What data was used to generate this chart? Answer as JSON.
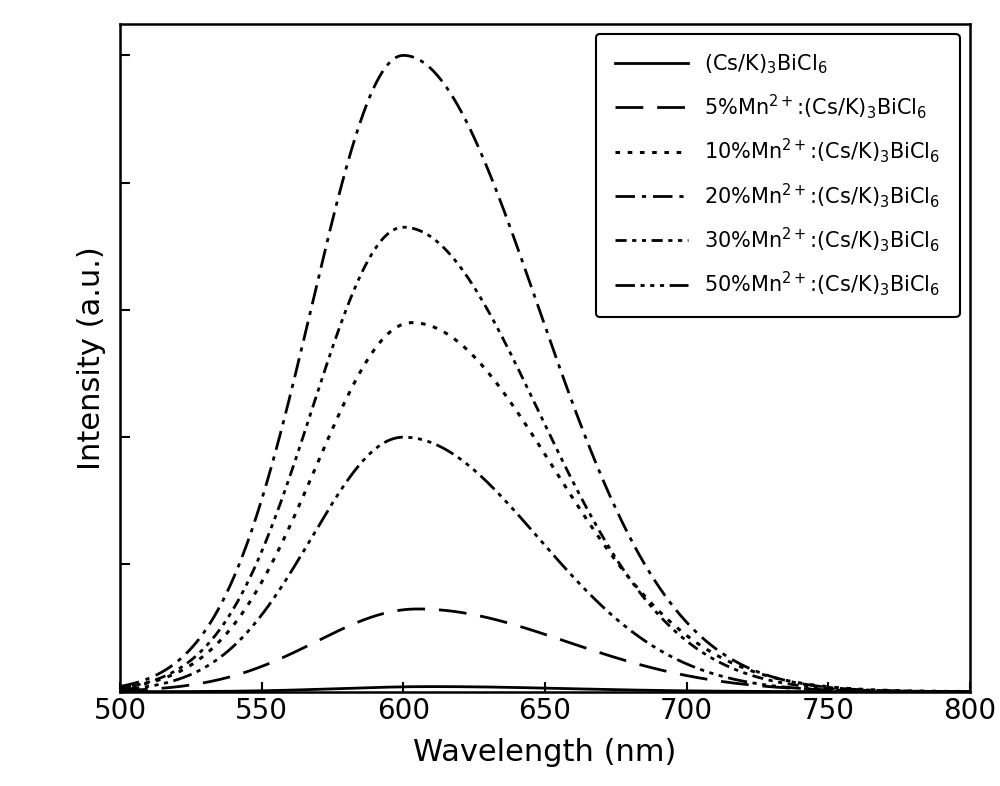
{
  "xlabel": "Wavelength (nm)",
  "ylabel": "Intensity (a.u.)",
  "xlim": [
    500,
    800
  ],
  "ylim": [
    0,
    1.05
  ],
  "xticks": [
    500,
    550,
    600,
    650,
    700,
    750,
    800
  ],
  "background_color": "#ffffff",
  "series": [
    {
      "label": "(Cs/K)$_3$BiCl$_6$",
      "peak": 610,
      "amplitude": 0.008,
      "sigma": 38,
      "skew": 2
    },
    {
      "label": "5%Mn$^{2+}$:(Cs/K)$_3$BiCl$_6$",
      "peak": 605,
      "amplitude": 0.13,
      "sigma": 42,
      "skew": 3
    },
    {
      "label": "10%Mn$^{2+}$:(Cs/K)$_3$BiCl$_6$",
      "peak": 603,
      "amplitude": 0.58,
      "sigma": 40,
      "skew": 3
    },
    {
      "label": "20%Mn$^{2+}$:(Cs/K)$_3$BiCl$_6$",
      "peak": 600,
      "amplitude": 1.0,
      "sigma": 38,
      "skew": 3
    },
    {
      "label": "30%Mn$^{2+}$:(Cs/K)$_3$BiCl$_6$",
      "peak": 600,
      "amplitude": 0.73,
      "sigma": 38,
      "skew": 3
    },
    {
      "label": "50%Mn$^{2+}$:(Cs/K)$_3$BiCl$_6$",
      "peak": 600,
      "amplitude": 0.4,
      "sigma": 38,
      "skew": 3
    }
  ],
  "legend_fontsize": 15,
  "axis_fontsize": 22,
  "tick_fontsize": 20,
  "line_color": "#000000",
  "linewidths": [
    2.0,
    2.0,
    2.0,
    2.0,
    2.0,
    2.0
  ]
}
